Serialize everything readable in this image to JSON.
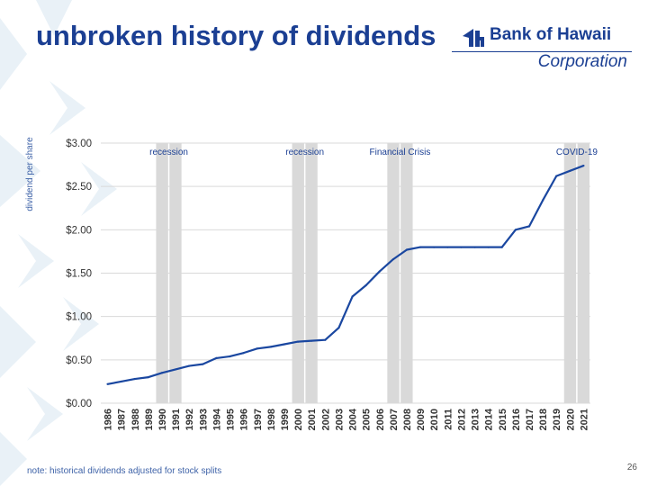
{
  "slide": {
    "title": "unbroken history of dividends",
    "note": "note: historical dividends adjusted for stock splits",
    "page_number": "26"
  },
  "logo": {
    "name": "Bank of Hawaii",
    "subtitle": "Corporation"
  },
  "colors": {
    "title": "#1b3f93",
    "line": "#1a47a0",
    "band": "#d9d9d9",
    "grid": "#d9d9d9",
    "deco": "#e9f1f7"
  },
  "chart_data": {
    "type": "line",
    "ylabel": "dividend per share",
    "xlabel": "",
    "ylim": [
      0,
      3
    ],
    "y_ticks": [
      "$0.00",
      "$0.50",
      "$1.00",
      "$1.50",
      "$2.00",
      "$2.50",
      "$3.00"
    ],
    "grid": true,
    "x": [
      "1986",
      "1987",
      "1988",
      "1989",
      "1990",
      "1991",
      "1992",
      "1993",
      "1994",
      "1995",
      "1996",
      "1997",
      "1998",
      "1999",
      "2000",
      "2001",
      "2002",
      "2003",
      "2004",
      "2005",
      "2006",
      "2007",
      "2008",
      "2009",
      "2010",
      "2011",
      "2012",
      "2013",
      "2014",
      "2015",
      "2016",
      "2017",
      "2018",
      "2019",
      "2020",
      "2021"
    ],
    "series": [
      {
        "values": [
          0.22,
          0.25,
          0.28,
          0.3,
          0.35,
          0.39,
          0.43,
          0.45,
          0.52,
          0.54,
          0.58,
          0.63,
          0.65,
          0.68,
          0.71,
          0.72,
          0.73,
          0.87,
          1.23,
          1.36,
          1.52,
          1.66,
          1.77,
          1.8,
          1.8,
          1.8,
          1.8,
          1.8,
          1.8,
          1.8,
          2.0,
          2.04,
          2.34,
          2.62,
          2.68,
          2.74
        ]
      }
    ],
    "shaded_periods": [
      {
        "label": "recession",
        "start": "1990",
        "end": "1991"
      },
      {
        "label": "recession",
        "start": "2000",
        "end": "2001"
      },
      {
        "label": "Financial Crisis",
        "start": "2007",
        "end": "2008"
      },
      {
        "label": "COVID-19",
        "start": "2020",
        "end": "2021"
      }
    ]
  }
}
